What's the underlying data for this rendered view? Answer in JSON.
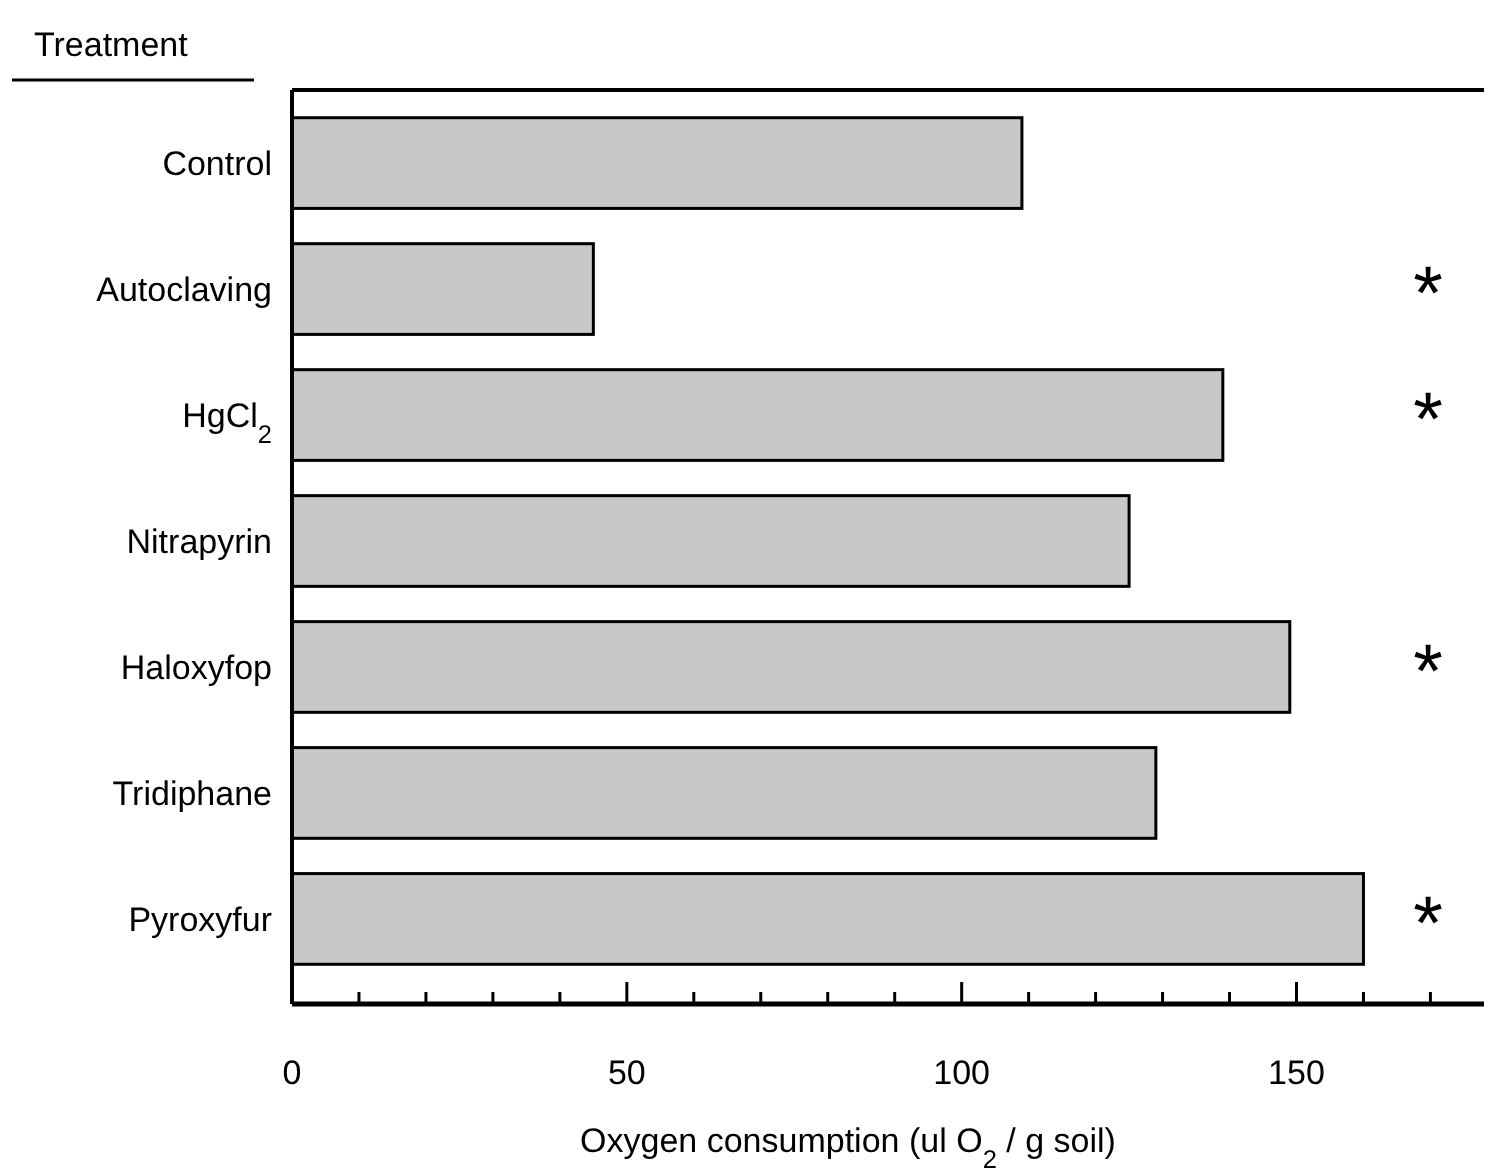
{
  "chart_data": {
    "type": "bar",
    "orientation": "horizontal",
    "ylabel": "Treatment",
    "xlabel": "Oxygen consumption (ul O$_{2}$ / g soil)",
    "categories": [
      "Control",
      "Autoclaving",
      "HgCl$_{2}$",
      "Nitrapyrin",
      "Haloxyfop",
      "Tridiphane",
      "Pyroxyfur"
    ],
    "values": [
      109,
      45,
      139,
      125,
      149,
      129,
      160
    ],
    "color": "#c8c8c8",
    "xlim": [
      0,
      178
    ],
    "xticks": [
      0,
      {
        "value": 10,
        "label": null
      },
      {
        "value": 20,
        "label": null
      },
      {
        "value": 30,
        "label": null
      },
      {
        "value": 40,
        "label": null
      },
      50,
      {
        "value": 60,
        "label": null
      },
      {
        "value": 70,
        "label": null
      },
      {
        "value": 80,
        "label": null
      },
      {
        "value": 90,
        "label": null
      },
      100,
      {
        "value": 110,
        "label": null
      },
      {
        "value": 120,
        "label": null
      },
      {
        "value": 130,
        "label": null
      },
      {
        "value": 140,
        "label": null
      },
      150,
      {
        "value": 160,
        "label": null
      },
      {
        "value": 170,
        "label": null
      }
    ],
    "grid": false,
    "value_labels": [
      null,
      "*",
      "*",
      null,
      "*",
      null,
      "*"
    ]
  }
}
